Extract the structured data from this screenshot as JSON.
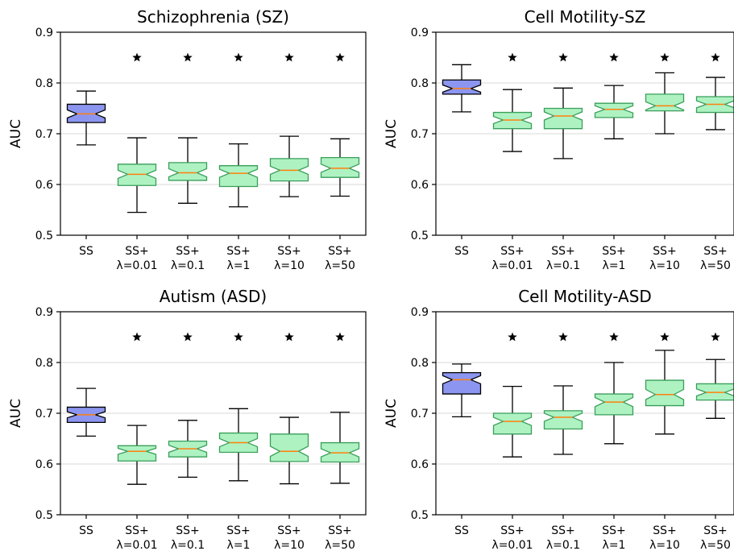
{
  "colors": {
    "baseline_fill": "#8c96f0",
    "baseline_edge": "#000000",
    "variant_fill": "#aef2c2",
    "variant_edge": "#3a9e5a",
    "median": "#ff7f0e",
    "star": "#000000"
  },
  "chart_data": [
    {
      "type": "box",
      "title": "Schizophrenia (SZ)",
      "ylabel": "AUC",
      "ylim": [
        0.5,
        0.9
      ],
      "yticks": [
        "0.5",
        "0.6",
        "0.7",
        "0.8",
        "0.9"
      ],
      "grid": "horizontal",
      "categories": [
        {
          "line1": "SS",
          "line2": ""
        },
        {
          "line1": "SS+",
          "line2": "λ=0.01"
        },
        {
          "line1": "SS+",
          "line2": "λ=0.1"
        },
        {
          "line1": "SS+",
          "line2": "λ=1"
        },
        {
          "line1": "SS+",
          "line2": "λ=10"
        },
        {
          "line1": "SS+",
          "line2": "λ=50"
        }
      ],
      "boxes": [
        {
          "min": 0.678,
          "q1": 0.722,
          "median": 0.739,
          "q3": 0.758,
          "max": 0.784,
          "notch_low": 0.731,
          "notch_high": 0.747
        },
        {
          "min": 0.545,
          "q1": 0.598,
          "median": 0.62,
          "q3": 0.64,
          "max": 0.692,
          "notch_low": 0.612,
          "notch_high": 0.628
        },
        {
          "min": 0.563,
          "q1": 0.608,
          "median": 0.623,
          "q3": 0.643,
          "max": 0.692,
          "notch_low": 0.615,
          "notch_high": 0.631
        },
        {
          "min": 0.556,
          "q1": 0.596,
          "median": 0.622,
          "q3": 0.637,
          "max": 0.68,
          "notch_low": 0.614,
          "notch_high": 0.63
        },
        {
          "min": 0.576,
          "q1": 0.607,
          "median": 0.628,
          "q3": 0.651,
          "max": 0.695,
          "notch_low": 0.62,
          "notch_high": 0.636
        },
        {
          "min": 0.577,
          "q1": 0.614,
          "median": 0.632,
          "q3": 0.653,
          "max": 0.69,
          "notch_low": 0.624,
          "notch_high": 0.64
        }
      ],
      "significance_y": 0.85,
      "significant": [
        false,
        true,
        true,
        true,
        true,
        true
      ]
    },
    {
      "type": "box",
      "title": "Cell Motility-SZ",
      "ylabel": "AUC",
      "ylim": [
        0.5,
        0.9
      ],
      "yticks": [
        "0.5",
        "0.6",
        "0.7",
        "0.8",
        "0.9"
      ],
      "grid": "horizontal",
      "categories": [
        {
          "line1": "SS",
          "line2": ""
        },
        {
          "line1": "SS+",
          "line2": "λ=0.01"
        },
        {
          "line1": "SS+",
          "line2": "λ=0.1"
        },
        {
          "line1": "SS+",
          "line2": "λ=1"
        },
        {
          "line1": "SS+",
          "line2": "λ=10"
        },
        {
          "line1": "SS+",
          "line2": "λ=50"
        }
      ],
      "boxes": [
        {
          "min": 0.743,
          "q1": 0.778,
          "median": 0.789,
          "q3": 0.806,
          "max": 0.836,
          "notch_low": 0.782,
          "notch_high": 0.796
        },
        {
          "min": 0.665,
          "q1": 0.71,
          "median": 0.727,
          "q3": 0.742,
          "max": 0.787,
          "notch_low": 0.72,
          "notch_high": 0.734
        },
        {
          "min": 0.651,
          "q1": 0.71,
          "median": 0.735,
          "q3": 0.75,
          "max": 0.79,
          "notch_low": 0.727,
          "notch_high": 0.743
        },
        {
          "min": 0.69,
          "q1": 0.732,
          "median": 0.748,
          "q3": 0.76,
          "max": 0.795,
          "notch_low": 0.741,
          "notch_high": 0.755
        },
        {
          "min": 0.7,
          "q1": 0.745,
          "median": 0.755,
          "q3": 0.778,
          "max": 0.82,
          "notch_low": 0.747,
          "notch_high": 0.763
        },
        {
          "min": 0.708,
          "q1": 0.742,
          "median": 0.758,
          "q3": 0.773,
          "max": 0.811,
          "notch_low": 0.751,
          "notch_high": 0.765
        }
      ],
      "significance_y": 0.85,
      "significant": [
        false,
        true,
        true,
        true,
        true,
        true
      ]
    },
    {
      "type": "box",
      "title": "Autism (ASD)",
      "ylabel": "AUC",
      "ylim": [
        0.5,
        0.9
      ],
      "yticks": [
        "0.5",
        "0.6",
        "0.7",
        "0.8",
        "0.9"
      ],
      "grid": "horizontal",
      "categories": [
        {
          "line1": "SS",
          "line2": ""
        },
        {
          "line1": "SS+",
          "line2": "λ=0.01"
        },
        {
          "line1": "SS+",
          "line2": "λ=0.1"
        },
        {
          "line1": "SS+",
          "line2": "λ=1"
        },
        {
          "line1": "SS+",
          "line2": "λ=10"
        },
        {
          "line1": "SS+",
          "line2": "λ=50"
        }
      ],
      "boxes": [
        {
          "min": 0.655,
          "q1": 0.682,
          "median": 0.697,
          "q3": 0.712,
          "max": 0.749,
          "notch_low": 0.691,
          "notch_high": 0.703
        },
        {
          "min": 0.56,
          "q1": 0.606,
          "median": 0.625,
          "q3": 0.636,
          "max": 0.676,
          "notch_low": 0.619,
          "notch_high": 0.631
        },
        {
          "min": 0.574,
          "q1": 0.614,
          "median": 0.63,
          "q3": 0.645,
          "max": 0.686,
          "notch_low": 0.623,
          "notch_high": 0.637
        },
        {
          "min": 0.567,
          "q1": 0.623,
          "median": 0.642,
          "q3": 0.661,
          "max": 0.709,
          "notch_low": 0.634,
          "notch_high": 0.65
        },
        {
          "min": 0.561,
          "q1": 0.605,
          "median": 0.625,
          "q3": 0.659,
          "max": 0.692,
          "notch_low": 0.615,
          "notch_high": 0.635
        },
        {
          "min": 0.562,
          "q1": 0.604,
          "median": 0.622,
          "q3": 0.642,
          "max": 0.702,
          "notch_low": 0.614,
          "notch_high": 0.63
        }
      ],
      "significance_y": 0.85,
      "significant": [
        false,
        true,
        true,
        true,
        true,
        true
      ]
    },
    {
      "type": "box",
      "title": "Cell Motility-ASD",
      "ylabel": "AUC",
      "ylim": [
        0.5,
        0.9
      ],
      "yticks": [
        "0.5",
        "0.6",
        "0.7",
        "0.8",
        "0.9"
      ],
      "grid": "horizontal",
      "categories": [
        {
          "line1": "SS",
          "line2": ""
        },
        {
          "line1": "SS+",
          "line2": "λ=0.01"
        },
        {
          "line1": "SS+",
          "line2": "λ=0.1"
        },
        {
          "line1": "SS+",
          "line2": "λ=1"
        },
        {
          "line1": "SS+",
          "line2": "λ=10"
        },
        {
          "line1": "SS+",
          "line2": "λ=50"
        }
      ],
      "boxes": [
        {
          "min": 0.693,
          "q1": 0.738,
          "median": 0.766,
          "q3": 0.78,
          "max": 0.797,
          "notch_low": 0.758,
          "notch_high": 0.774
        },
        {
          "min": 0.614,
          "q1": 0.659,
          "median": 0.684,
          "q3": 0.7,
          "max": 0.753,
          "notch_low": 0.676,
          "notch_high": 0.692
        },
        {
          "min": 0.619,
          "q1": 0.669,
          "median": 0.692,
          "q3": 0.705,
          "max": 0.754,
          "notch_low": 0.684,
          "notch_high": 0.7
        },
        {
          "min": 0.64,
          "q1": 0.697,
          "median": 0.722,
          "q3": 0.738,
          "max": 0.8,
          "notch_low": 0.713,
          "notch_high": 0.731
        },
        {
          "min": 0.659,
          "q1": 0.715,
          "median": 0.737,
          "q3": 0.765,
          "max": 0.824,
          "notch_low": 0.727,
          "notch_high": 0.747
        },
        {
          "min": 0.69,
          "q1": 0.726,
          "median": 0.741,
          "q3": 0.758,
          "max": 0.806,
          "notch_low": 0.734,
          "notch_high": 0.748
        }
      ],
      "significance_y": 0.85,
      "significant": [
        false,
        true,
        true,
        true,
        true,
        true
      ]
    }
  ]
}
